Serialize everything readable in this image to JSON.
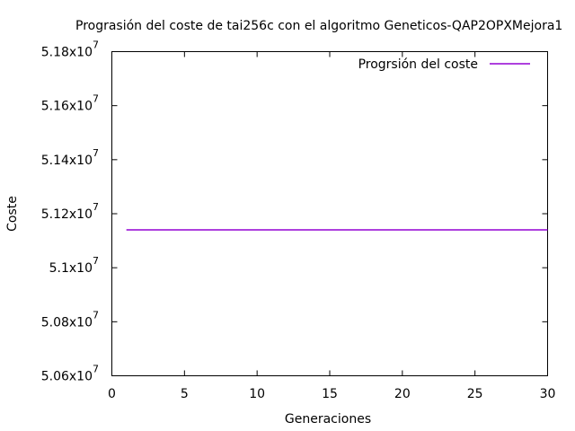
{
  "chart_data": {
    "type": "line",
    "title": "Prograsión del coste de tai256c con el algoritmo Geneticos-QAP2OPXMejora1",
    "xlabel": "Generaciones",
    "ylabel": "Coste",
    "xlim": [
      0,
      30
    ],
    "ylim": [
      50600000,
      51800000
    ],
    "x_ticks": [
      0,
      5,
      10,
      15,
      20,
      25,
      30
    ],
    "x_tick_labels": [
      "0",
      "5",
      "10",
      "15",
      "20",
      "25",
      "30"
    ],
    "y_ticks": [
      50600000,
      50800000,
      51000000,
      51200000,
      51400000,
      51600000,
      51800000
    ],
    "y_tick_labels": [
      {
        "mantissa": "5.06x10",
        "exponent": "7"
      },
      {
        "mantissa": "5.08x10",
        "exponent": "7"
      },
      {
        "mantissa": "5.1x10",
        "exponent": "7"
      },
      {
        "mantissa": "5.12x10",
        "exponent": "7"
      },
      {
        "mantissa": "5.14x10",
        "exponent": "7"
      },
      {
        "mantissa": "5.16x10",
        "exponent": "7"
      },
      {
        "mantissa": "5.18x10",
        "exponent": "7"
      }
    ],
    "grid": false,
    "legend_position": "top-right",
    "series": [
      {
        "name": "Progrsión del coste",
        "color": "#9400d3",
        "x": [
          1,
          30
        ],
        "y": [
          51140000,
          51140000
        ]
      }
    ]
  }
}
